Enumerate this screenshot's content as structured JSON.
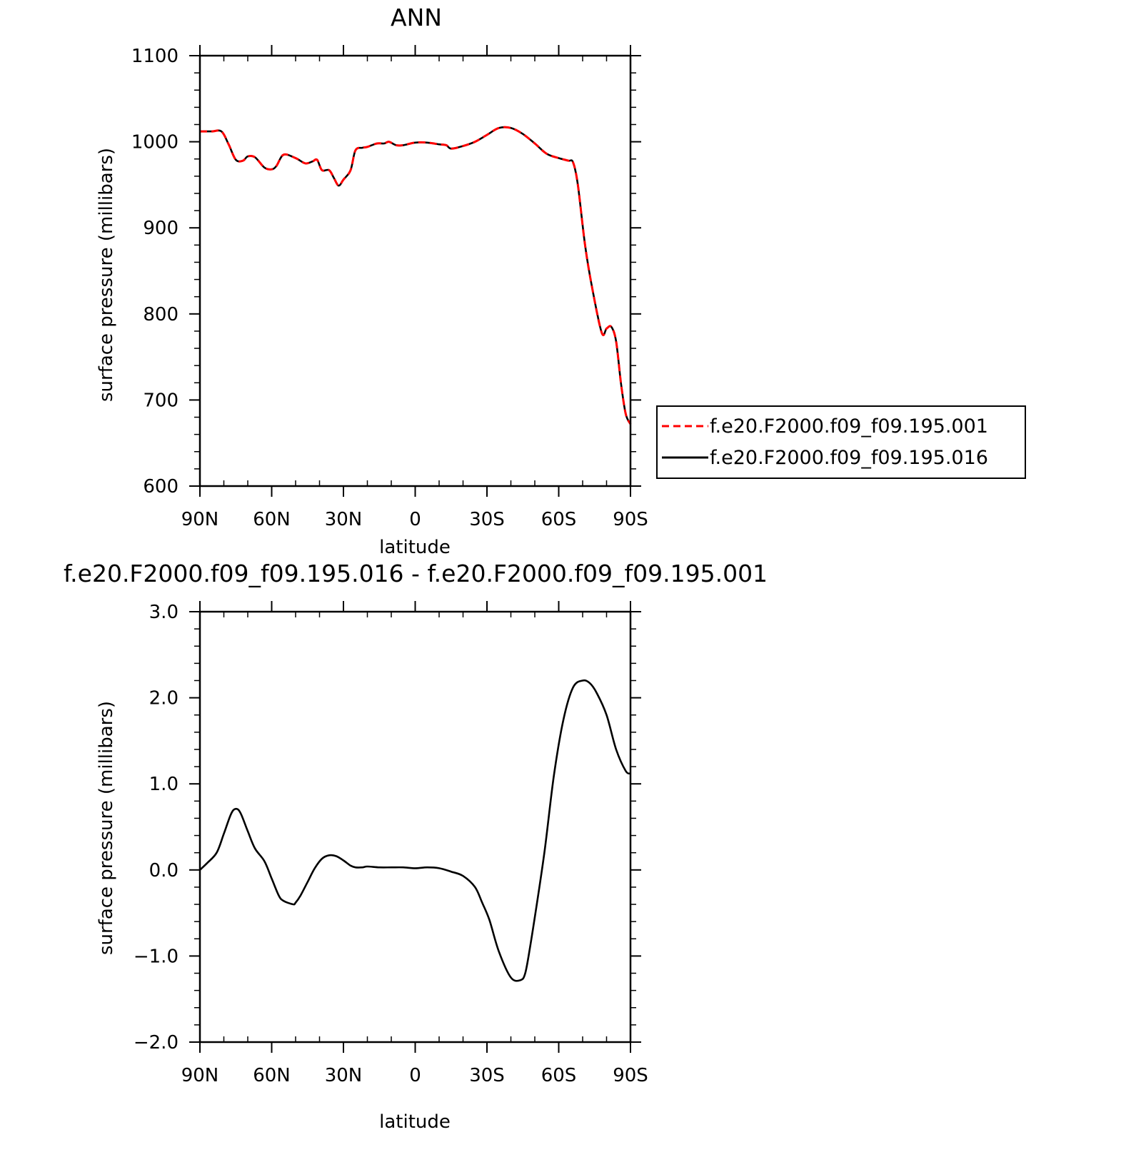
{
  "chart_data": [
    {
      "type": "line",
      "title": "ANN",
      "xlabel": "latitude",
      "ylabel": "surface pressure (millibars)",
      "xlim": [
        90,
        -90
      ],
      "ylim": [
        600,
        1100
      ],
      "x_ticks": [
        {
          "value": 90,
          "label": "90N"
        },
        {
          "value": 60,
          "label": "60N"
        },
        {
          "value": 30,
          "label": "30N"
        },
        {
          "value": 0,
          "label": "0"
        },
        {
          "value": -30,
          "label": "30S"
        },
        {
          "value": -60,
          "label": "60S"
        },
        {
          "value": -90,
          "label": "90S"
        }
      ],
      "y_ticks": [
        {
          "value": 1100,
          "label": "1100"
        },
        {
          "value": 1000,
          "label": "1000"
        },
        {
          "value": 900,
          "label": "900"
        },
        {
          "value": 800,
          "label": "800"
        },
        {
          "value": 700,
          "label": "700"
        },
        {
          "value": 600,
          "label": "600"
        }
      ],
      "legend": "right",
      "x": [
        90,
        85,
        81,
        78,
        75,
        72,
        70,
        67,
        63,
        60,
        58,
        55,
        50,
        46,
        43,
        41,
        39,
        36,
        34,
        32,
        30,
        27,
        25,
        22,
        20,
        16,
        13,
        11,
        8,
        5,
        0,
        -5,
        -10,
        -13,
        -15,
        -20,
        -25,
        -30,
        -35,
        -40,
        -45,
        -50,
        -55,
        -60,
        -64,
        -66,
        -68,
        -71,
        -74,
        -78,
        -80,
        -82,
        -84,
        -86,
        -88,
        -90
      ],
      "series": [
        {
          "name": "f.e20.F2000.f09_f09.195.001",
          "color": "#ff0000",
          "dash": "dashed",
          "values": [
            1012,
            1012,
            1012,
            997,
            979,
            978,
            983,
            982,
            970,
            968,
            972,
            985,
            981,
            975,
            977,
            979,
            967,
            967,
            958,
            949,
            956,
            967,
            990,
            993,
            994,
            998,
            998,
            1000,
            996,
            996,
            999,
            999,
            997,
            996,
            992,
            995,
            1000,
            1008,
            1016,
            1016,
            1009,
            998,
            986,
            981,
            978,
            976,
            950,
            880,
            830,
            778,
            783,
            785,
            768,
            720,
            684,
            672
          ]
        },
        {
          "name": "f.e20.F2000.f09_f09.195.016",
          "color": "#000000",
          "dash": "solid",
          "values": [
            1012,
            1012,
            1012,
            997,
            979,
            978,
            983,
            982,
            970,
            968,
            972,
            985,
            981,
            975,
            977,
            979,
            967,
            967,
            958,
            949,
            956,
            967,
            990,
            993,
            994,
            998,
            998,
            1000,
            996,
            996,
            999,
            999,
            997,
            996,
            992,
            995,
            1000,
            1008,
            1016,
            1016,
            1009,
            998,
            986,
            981,
            978,
            976,
            950,
            880,
            830,
            778,
            783,
            785,
            768,
            720,
            684,
            672
          ]
        }
      ]
    },
    {
      "type": "line",
      "title": "f.e20.F2000.f09_f09.195.016 - f.e20.F2000.f09_f09.195.001",
      "xlabel": "latitude",
      "ylabel": "surface pressure (millibars)",
      "xlim": [
        90,
        -90
      ],
      "ylim": [
        -2.0,
        3.0
      ],
      "x_ticks": [
        {
          "value": 90,
          "label": "90N"
        },
        {
          "value": 60,
          "label": "60N"
        },
        {
          "value": 30,
          "label": "30N"
        },
        {
          "value": 0,
          "label": "0"
        },
        {
          "value": -30,
          "label": "30S"
        },
        {
          "value": -60,
          "label": "60S"
        },
        {
          "value": -90,
          "label": "90S"
        }
      ],
      "y_ticks": [
        {
          "value": 3.0,
          "label": "3.0"
        },
        {
          "value": 2.0,
          "label": "2.0"
        },
        {
          "value": 1.0,
          "label": "1.0"
        },
        {
          "value": 0.0,
          "label": "0.0"
        },
        {
          "value": -1.0,
          "label": "−1.0"
        },
        {
          "value": -2.0,
          "label": "−2.0"
        }
      ],
      "x": [
        90,
        87,
        83,
        80,
        77,
        75,
        73,
        70,
        67,
        63,
        60,
        57,
        55,
        51,
        50,
        48,
        45,
        42,
        39,
        36,
        33,
        30,
        27,
        25,
        22,
        20,
        15,
        10,
        5,
        0,
        -5,
        -10,
        -15,
        -20,
        -25,
        -28,
        -31,
        -35,
        -40,
        -44,
        -46,
        -48,
        -50,
        -54,
        -58,
        -62,
        -66,
        -70,
        -73,
        -76,
        -80,
        -84,
        -88,
        -90
      ],
      "series": [
        {
          "color": "#000000",
          "dash": "solid",
          "values": [
            0.0,
            0.08,
            0.2,
            0.42,
            0.65,
            0.71,
            0.66,
            0.45,
            0.25,
            0.1,
            -0.1,
            -0.3,
            -0.36,
            -0.4,
            -0.38,
            -0.3,
            -0.14,
            0.02,
            0.13,
            0.17,
            0.16,
            0.11,
            0.05,
            0.03,
            0.03,
            0.04,
            0.03,
            0.03,
            0.03,
            0.02,
            0.03,
            0.02,
            -0.02,
            -0.07,
            -0.2,
            -0.38,
            -0.58,
            -0.95,
            -1.25,
            -1.28,
            -1.2,
            -0.9,
            -0.55,
            0.2,
            1.1,
            1.75,
            2.12,
            2.2,
            2.17,
            2.05,
            1.8,
            1.4,
            1.15,
            1.12
          ]
        }
      ]
    }
  ]
}
